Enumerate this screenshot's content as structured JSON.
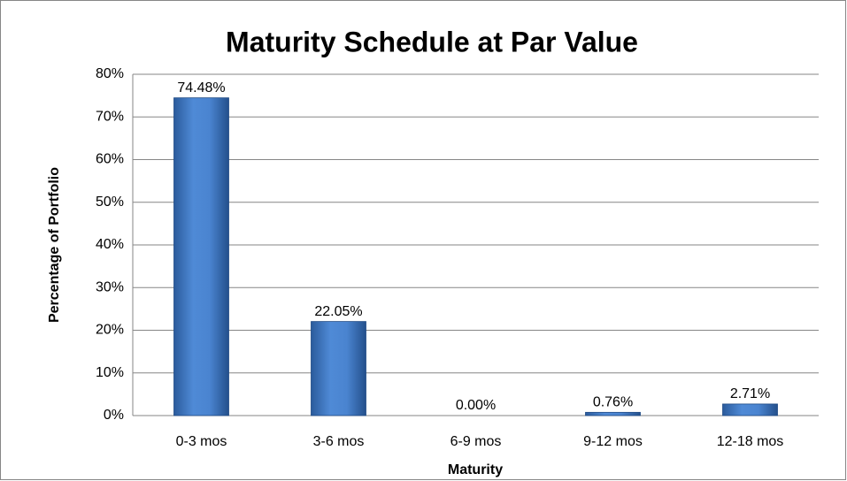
{
  "chart_data": {
    "type": "bar",
    "title": "Maturity Schedule at Par Value",
    "x_label": "Maturity",
    "y_label": "Percentage of Portfolio",
    "categories": [
      "0-3 mos",
      "3-6 mos",
      "6-9 mos",
      "9-12 mos",
      "12-18 mos"
    ],
    "values": [
      74.48,
      22.05,
      0.0,
      0.76,
      2.71
    ],
    "value_labels": [
      "74.48%",
      "22.05%",
      "0.00%",
      "0.76%",
      "2.71%"
    ],
    "color": "#3c75c2",
    "ylim": [
      0,
      80
    ],
    "yticks": [
      {
        "value": 0,
        "label": "0%"
      },
      {
        "value": 10,
        "label": "10%"
      },
      {
        "value": 20,
        "label": "20%"
      },
      {
        "value": 30,
        "label": "30%"
      },
      {
        "value": 40,
        "label": "40%"
      },
      {
        "value": 50,
        "label": "50%"
      },
      {
        "value": 60,
        "label": "60%"
      },
      {
        "value": 70,
        "label": "70%"
      },
      {
        "value": 80,
        "label": "80%"
      }
    ],
    "grid": true
  }
}
